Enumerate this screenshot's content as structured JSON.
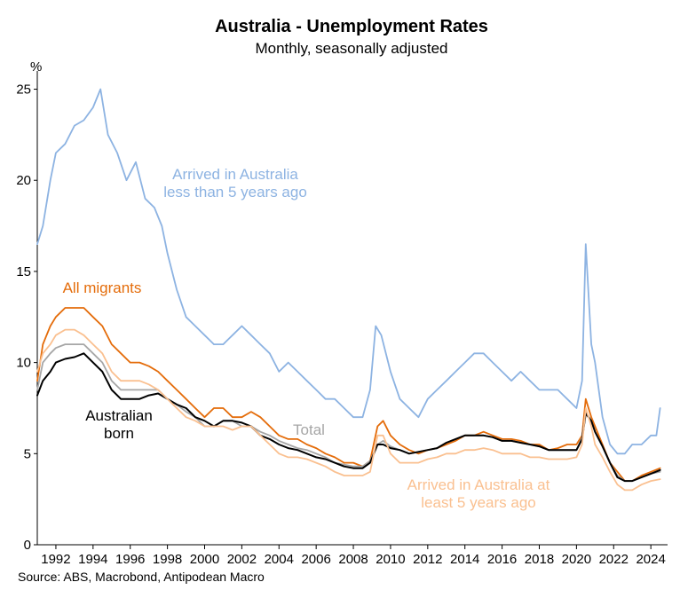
{
  "chart_data": {
    "type": "line",
    "title": "Australia - Unemployment Rates",
    "subtitle": "Monthly, seasonally adjusted",
    "ylabel": "%",
    "xlabel": "",
    "source": "Source: ABS, Macrobond, Antipodean Macro",
    "xlim": [
      1991.0,
      2024.9
    ],
    "ylim": [
      0,
      26
    ],
    "y_ticks": [
      0,
      5,
      10,
      15,
      20,
      25
    ],
    "x_ticks": [
      1992,
      1994,
      1996,
      1998,
      2000,
      2002,
      2004,
      2006,
      2008,
      2010,
      2012,
      2014,
      2016,
      2018,
      2020,
      2022,
      2024
    ],
    "grid": false,
    "legend": "none (series labelled directly on chart)",
    "series": [
      {
        "name": "Arrived in Australia less than 5 years ago",
        "label_lines": [
          "Arrived in Australia",
          "less than 5 years ago"
        ],
        "color": "#8DB3E2",
        "x": [
          1991.0,
          1991.3,
          1991.7,
          1992.0,
          1992.5,
          1993.0,
          1993.5,
          1994.0,
          1994.4,
          1994.8,
          1995.3,
          1995.8,
          1996.3,
          1996.8,
          1997.3,
          1997.7,
          1998.0,
          1998.5,
          1999.0,
          1999.5,
          2000.0,
          2000.5,
          2001.0,
          2001.5,
          2002.0,
          2002.5,
          2003.0,
          2003.5,
          2004.0,
          2004.5,
          2005.0,
          2005.5,
          2006.0,
          2006.5,
          2007.0,
          2007.5,
          2008.0,
          2008.5,
          2008.9,
          2009.2,
          2009.5,
          2010.0,
          2010.5,
          2011.0,
          2011.5,
          2012.0,
          2012.5,
          2013.0,
          2013.5,
          2014.0,
          2014.5,
          2015.0,
          2015.5,
          2016.0,
          2016.5,
          2017.0,
          2017.5,
          2018.0,
          2018.5,
          2019.0,
          2019.5,
          2020.0,
          2020.3,
          2020.5,
          2020.8,
          2021.0,
          2021.4,
          2021.8,
          2022.2,
          2022.6,
          2023.0,
          2023.5,
          2024.0,
          2024.3,
          2024.5
        ],
        "values": [
          16.5,
          17.5,
          20.0,
          21.5,
          22.0,
          23.0,
          23.3,
          24.0,
          25.0,
          22.5,
          21.5,
          20.0,
          21.0,
          19.0,
          18.5,
          17.5,
          16.0,
          14.0,
          12.5,
          12.0,
          11.5,
          11.0,
          11.0,
          11.5,
          12.0,
          11.5,
          11.0,
          10.5,
          9.5,
          10.0,
          9.5,
          9.0,
          8.5,
          8.0,
          8.0,
          7.5,
          7.0,
          7.0,
          8.5,
          12.0,
          11.5,
          9.5,
          8.0,
          7.5,
          7.0,
          8.0,
          8.5,
          9.0,
          9.5,
          10.0,
          10.5,
          10.5,
          10.0,
          9.5,
          9.0,
          9.5,
          9.0,
          8.5,
          8.5,
          8.5,
          8.0,
          7.5,
          9.0,
          16.5,
          11.0,
          10.0,
          7.0,
          5.5,
          5.0,
          5.0,
          5.5,
          5.5,
          6.0,
          6.0,
          7.5
        ]
      },
      {
        "name": "All migrants",
        "color": "#E46C0A",
        "x": [
          1991.0,
          1991.3,
          1991.7,
          1992.0,
          1992.5,
          1993.0,
          1993.5,
          1994.0,
          1994.5,
          1995.0,
          1995.5,
          1996.0,
          1996.5,
          1997.0,
          1997.5,
          1998.0,
          1998.5,
          1999.0,
          1999.5,
          2000.0,
          2000.5,
          2001.0,
          2001.5,
          2002.0,
          2002.5,
          2003.0,
          2003.5,
          2004.0,
          2004.5,
          2005.0,
          2005.5,
          2006.0,
          2006.5,
          2007.0,
          2007.5,
          2008.0,
          2008.5,
          2008.9,
          2009.3,
          2009.6,
          2010.0,
          2010.5,
          2011.0,
          2011.5,
          2012.0,
          2012.5,
          2013.0,
          2013.5,
          2014.0,
          2014.5,
          2015.0,
          2015.5,
          2016.0,
          2016.5,
          2017.0,
          2017.5,
          2018.0,
          2018.5,
          2019.0,
          2019.5,
          2020.0,
          2020.3,
          2020.5,
          2020.8,
          2021.0,
          2021.4,
          2021.8,
          2022.2,
          2022.6,
          2023.0,
          2023.5,
          2024.0,
          2024.5
        ],
        "values": [
          9.0,
          11.0,
          12.0,
          12.5,
          13.0,
          13.0,
          13.0,
          12.5,
          12.0,
          11.0,
          10.5,
          10.0,
          10.0,
          9.8,
          9.5,
          9.0,
          8.5,
          8.0,
          7.5,
          7.0,
          7.5,
          7.5,
          7.0,
          7.0,
          7.3,
          7.0,
          6.5,
          6.0,
          5.8,
          5.8,
          5.5,
          5.3,
          5.0,
          4.8,
          4.5,
          4.5,
          4.3,
          4.6,
          6.5,
          6.8,
          6.0,
          5.5,
          5.2,
          5.0,
          5.2,
          5.3,
          5.5,
          5.7,
          6.0,
          6.0,
          6.2,
          6.0,
          5.8,
          5.8,
          5.7,
          5.5,
          5.5,
          5.2,
          5.3,
          5.5,
          5.5,
          6.0,
          8.0,
          7.0,
          6.5,
          5.5,
          4.5,
          4.0,
          3.5,
          3.5,
          3.8,
          4.0,
          4.2
        ]
      },
      {
        "name": "Total",
        "color": "#A6A6A6",
        "x": [
          1991.0,
          1991.3,
          1991.7,
          1992.0,
          1992.5,
          1993.0,
          1993.5,
          1994.0,
          1994.5,
          1995.0,
          1995.5,
          1996.0,
          1996.5,
          1997.0,
          1997.5,
          1998.0,
          1998.5,
          1999.0,
          1999.5,
          2000.0,
          2000.5,
          2001.0,
          2001.5,
          2002.0,
          2002.5,
          2003.0,
          2003.5,
          2004.0,
          2004.5,
          2005.0,
          2005.5,
          2006.0,
          2006.5,
          2007.0,
          2007.5,
          2008.0,
          2008.5,
          2008.9,
          2009.3,
          2009.6,
          2010.0,
          2010.5,
          2011.0,
          2011.5,
          2012.0,
          2012.5,
          2013.0,
          2013.5,
          2014.0,
          2014.5,
          2015.0,
          2015.5,
          2016.0,
          2016.5,
          2017.0,
          2017.5,
          2018.0,
          2018.5,
          2019.0,
          2019.5,
          2020.0,
          2020.3,
          2020.5,
          2020.8,
          2021.0,
          2021.4,
          2021.8,
          2022.2,
          2022.6,
          2023.0,
          2023.5,
          2024.0,
          2024.5
        ],
        "values": [
          8.5,
          10.0,
          10.5,
          10.8,
          11.0,
          11.0,
          11.0,
          10.5,
          10.0,
          9.0,
          8.5,
          8.5,
          8.5,
          8.5,
          8.5,
          8.0,
          7.7,
          7.3,
          7.0,
          6.5,
          6.5,
          6.8,
          6.8,
          6.5,
          6.5,
          6.2,
          6.0,
          5.7,
          5.5,
          5.3,
          5.2,
          5.0,
          4.8,
          4.5,
          4.4,
          4.3,
          4.3,
          4.6,
          5.5,
          5.7,
          5.4,
          5.2,
          5.0,
          5.1,
          5.2,
          5.3,
          5.6,
          5.8,
          6.0,
          6.0,
          6.0,
          5.9,
          5.7,
          5.7,
          5.6,
          5.5,
          5.4,
          5.2,
          5.2,
          5.2,
          5.2,
          5.9,
          7.3,
          6.8,
          6.2,
          5.4,
          4.5,
          3.8,
          3.5,
          3.5,
          3.7,
          3.9,
          4.0
        ]
      },
      {
        "name": "Australian born",
        "label_lines": [
          "Australian",
          "born"
        ],
        "color": "#000000",
        "x": [
          1991.0,
          1991.3,
          1991.7,
          1992.0,
          1992.5,
          1993.0,
          1993.5,
          1994.0,
          1994.5,
          1995.0,
          1995.5,
          1996.0,
          1996.5,
          1997.0,
          1997.5,
          1998.0,
          1998.5,
          1999.0,
          1999.5,
          2000.0,
          2000.5,
          2001.0,
          2001.5,
          2002.0,
          2002.5,
          2003.0,
          2003.5,
          2004.0,
          2004.5,
          2005.0,
          2005.5,
          2006.0,
          2006.5,
          2007.0,
          2007.5,
          2008.0,
          2008.5,
          2008.9,
          2009.3,
          2009.6,
          2010.0,
          2010.5,
          2011.0,
          2011.5,
          2012.0,
          2012.5,
          2013.0,
          2013.5,
          2014.0,
          2014.5,
          2015.0,
          2015.5,
          2016.0,
          2016.5,
          2017.0,
          2017.5,
          2018.0,
          2018.5,
          2019.0,
          2019.5,
          2020.0,
          2020.3,
          2020.5,
          2020.8,
          2021.0,
          2021.4,
          2021.8,
          2022.2,
          2022.6,
          2023.0,
          2023.5,
          2024.0,
          2024.5
        ],
        "values": [
          8.2,
          9.0,
          9.5,
          10.0,
          10.2,
          10.3,
          10.5,
          10.0,
          9.5,
          8.5,
          8.0,
          8.0,
          8.0,
          8.2,
          8.3,
          8.0,
          7.7,
          7.5,
          7.0,
          6.8,
          6.5,
          6.8,
          6.8,
          6.7,
          6.5,
          6.0,
          5.8,
          5.5,
          5.3,
          5.2,
          5.0,
          4.8,
          4.7,
          4.5,
          4.3,
          4.2,
          4.2,
          4.5,
          5.5,
          5.5,
          5.3,
          5.2,
          5.0,
          5.1,
          5.2,
          5.3,
          5.6,
          5.8,
          6.0,
          6.0,
          6.0,
          5.9,
          5.7,
          5.7,
          5.6,
          5.5,
          5.4,
          5.2,
          5.2,
          5.2,
          5.2,
          5.8,
          7.2,
          6.8,
          6.2,
          5.4,
          4.5,
          3.7,
          3.5,
          3.5,
          3.7,
          3.9,
          4.1
        ]
      },
      {
        "name": "Arrived in Australia at least 5 years ago",
        "label_lines": [
          "Arrived in Australia at",
          "least 5 years ago"
        ],
        "color": "#FAC090",
        "x": [
          1991.0,
          1991.3,
          1991.7,
          1992.0,
          1992.5,
          1993.0,
          1993.5,
          1994.0,
          1994.5,
          1995.0,
          1995.5,
          1996.0,
          1996.5,
          1997.0,
          1997.5,
          1998.0,
          1998.5,
          1999.0,
          1999.5,
          2000.0,
          2000.5,
          2001.0,
          2001.5,
          2002.0,
          2002.5,
          2003.0,
          2003.5,
          2004.0,
          2004.5,
          2005.0,
          2005.5,
          2006.0,
          2006.5,
          2007.0,
          2007.5,
          2008.0,
          2008.5,
          2008.9,
          2009.3,
          2009.6,
          2010.0,
          2010.5,
          2011.0,
          2011.5,
          2012.0,
          2012.5,
          2013.0,
          2013.5,
          2014.0,
          2014.5,
          2015.0,
          2015.5,
          2016.0,
          2016.5,
          2017.0,
          2017.5,
          2018.0,
          2018.5,
          2019.0,
          2019.5,
          2020.0,
          2020.3,
          2020.5,
          2020.8,
          2021.0,
          2021.4,
          2021.8,
          2022.2,
          2022.6,
          2023.0,
          2023.5,
          2024.0,
          2024.5
        ],
        "values": [
          9.5,
          10.5,
          11.0,
          11.5,
          11.8,
          11.8,
          11.5,
          11.0,
          10.5,
          9.5,
          9.0,
          9.0,
          9.0,
          8.8,
          8.5,
          8.0,
          7.5,
          7.0,
          6.8,
          6.5,
          6.5,
          6.5,
          6.3,
          6.5,
          6.5,
          6.0,
          5.5,
          5.0,
          4.8,
          4.8,
          4.7,
          4.5,
          4.3,
          4.0,
          3.8,
          3.8,
          3.8,
          4.0,
          6.0,
          6.0,
          5.0,
          4.5,
          4.5,
          4.5,
          4.7,
          4.8,
          5.0,
          5.0,
          5.2,
          5.2,
          5.3,
          5.2,
          5.0,
          5.0,
          5.0,
          4.8,
          4.8,
          4.7,
          4.7,
          4.7,
          4.8,
          5.5,
          7.5,
          6.5,
          5.5,
          4.8,
          4.0,
          3.3,
          3.0,
          3.0,
          3.3,
          3.5,
          3.6
        ]
      }
    ]
  }
}
